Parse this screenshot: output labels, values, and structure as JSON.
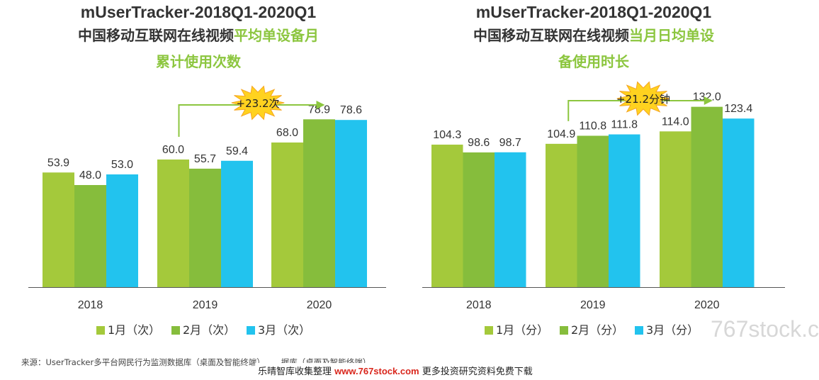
{
  "colors": {
    "month1": "#a4c93b",
    "month2": "#86bd3c",
    "month3": "#22c3ee",
    "accent": "#8cc63f",
    "star": "#ffd21f",
    "star_edge": "#f5a623"
  },
  "left": {
    "title_en": "mUserTracker-2018Q1-2020Q1",
    "title_cn_plain": "中国移动互联网在线视频",
    "title_cn_hl1": "平均单设备月",
    "title_cn_hl2": "累计使用次数",
    "callout": "+23.2次",
    "legend": [
      "1月（次）",
      "2月（次）",
      "3月（次）"
    ]
  },
  "right": {
    "title_en": "mUserTracker-2018Q1-2020Q1",
    "title_cn_plain": "中国移动互联网在线视频",
    "title_cn_hl1": "当月日均单设",
    "title_cn_hl2": "备使用时长",
    "callout": "+21.2分钟",
    "legend": [
      "1月（分）",
      "2月（分）",
      "3月（分）"
    ]
  },
  "chart_data": [
    {
      "type": "bar",
      "title": "mUserTracker-2018Q1-2020Q1 中国移动互联网在线视频平均单设备月累计使用次数",
      "categories": [
        "2018",
        "2019",
        "2020"
      ],
      "series": [
        {
          "name": "1月（次）",
          "values": [
            53.9,
            60.0,
            68.0
          ]
        },
        {
          "name": "2月（次）",
          "values": [
            48.0,
            55.7,
            78.9
          ]
        },
        {
          "name": "3月（次）",
          "values": [
            53.0,
            59.4,
            78.6
          ]
        }
      ],
      "annotation": "+23.2次",
      "ylim": [
        0,
        100
      ],
      "grid": false,
      "legend_position": "bottom"
    },
    {
      "type": "bar",
      "title": "mUserTracker-2018Q1-2020Q1 中国移动互联网在线视频当月日均单设备使用时长",
      "categories": [
        "2018",
        "2019",
        "2020"
      ],
      "series": [
        {
          "name": "1月（分）",
          "values": [
            104.3,
            104.9,
            114.0
          ]
        },
        {
          "name": "2月（分）",
          "values": [
            98.6,
            110.8,
            132.0
          ]
        },
        {
          "name": "3月（分）",
          "values": [
            98.7,
            111.8,
            123.4
          ]
        }
      ],
      "annotation": "+21.2分钟",
      "ylim": [
        0,
        180
      ],
      "grid": false,
      "legend_position": "bottom"
    }
  ],
  "footer": {
    "source": "来源：UserTracker多平台网民行为监测数据库（桌面及智能终端）……据库（桌面及智能终端）。",
    "watermark_prefix": "乐晴智库收集整理",
    "watermark_url": "www.767stock.com",
    "watermark_suffix": "更多投资研究资料免费下载",
    "corner_mark": "767stock.c"
  }
}
